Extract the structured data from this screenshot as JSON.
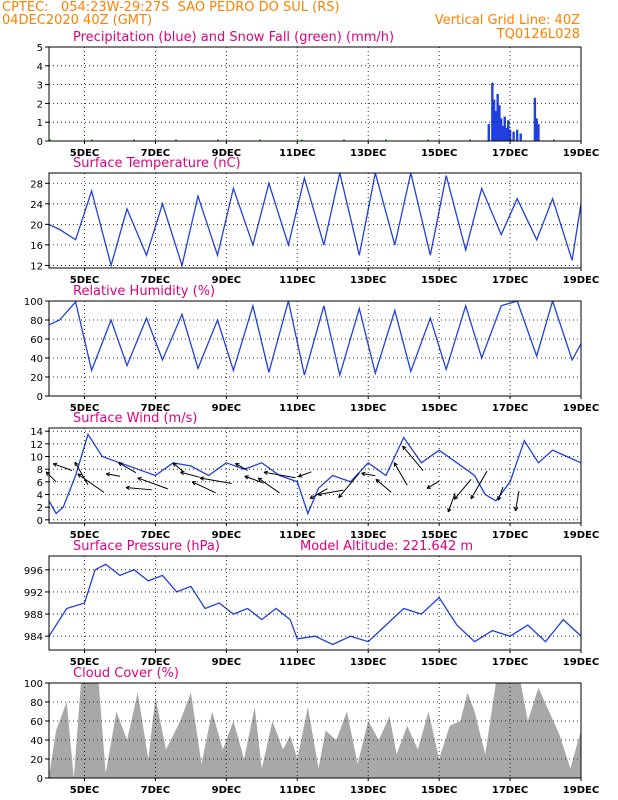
{
  "header": {
    "line1_left": "CPTEC:   054:23W-29:27S  SAO PEDRO DO SUL (RS)",
    "line2_left": "04DEC2020 40Z (GMT)",
    "line2_right": "Vertical Grid Line: 40Z",
    "line3_right": "TQ0126L028"
  },
  "x_tick_labels": [
    "5DEC",
    "7DEC",
    "9DEC",
    "11DEC",
    "13DEC",
    "15DEC",
    "17DEC",
    "19DEC"
  ],
  "colors": {
    "header": "#ff8000",
    "panel_title": "#e0007f",
    "series_blue": "#2040e0",
    "snow_green": "#00b000",
    "cloud_gray": "#a8a8a8"
  },
  "chart_data": [
    {
      "type": "bar",
      "title": "Precipitation (blue) and Snow Fall (green) (mm/h)",
      "ylim": [
        0,
        5
      ],
      "yticks": [
        "0",
        "1",
        "2",
        "3",
        "4",
        "5"
      ],
      "grid": true,
      "series": [
        {
          "name": "Precipitation",
          "color": "blue",
          "points": [
            [
              16.4,
              0.9
            ],
            [
              16.5,
              3.1
            ],
            [
              16.55,
              2.2
            ],
            [
              16.6,
              1.6
            ],
            [
              16.65,
              2.5
            ],
            [
              16.7,
              1.9
            ],
            [
              16.75,
              1.2
            ],
            [
              16.8,
              0.8
            ],
            [
              16.85,
              1.3
            ],
            [
              16.9,
              0.7
            ],
            [
              16.95,
              1.1
            ],
            [
              17.0,
              0.6
            ],
            [
              17.1,
              0.5
            ],
            [
              17.2,
              0.6
            ],
            [
              17.3,
              0.4
            ],
            [
              17.7,
              2.3
            ],
            [
              17.75,
              1.2
            ],
            [
              17.8,
              0.9
            ]
          ]
        },
        {
          "name": "Snow Fall",
          "color": "green",
          "values": "0"
        }
      ]
    },
    {
      "type": "line",
      "title": "Surface Temperature (nC)",
      "ylim": [
        11.5,
        30
      ],
      "yticks": [
        "12",
        "16",
        "20",
        "24",
        "28"
      ],
      "grid": true,
      "x": [
        4.0,
        4.3,
        4.75,
        5.2,
        5.75,
        6.2,
        6.75,
        7.2,
        7.75,
        8.2,
        8.75,
        9.2,
        9.75,
        10.2,
        10.75,
        11.2,
        11.75,
        12.2,
        12.75,
        13.2,
        13.75,
        14.2,
        14.75,
        15.2,
        15.75,
        16.2,
        16.75,
        17.2,
        17.75,
        18.2,
        18.75,
        19.0
      ],
      "y": [
        20,
        19,
        17,
        26.5,
        12,
        23,
        14,
        24,
        12,
        25.5,
        14,
        27,
        16,
        28,
        16,
        29,
        16,
        30,
        14,
        30,
        16,
        30,
        14,
        29.5,
        15,
        27,
        18,
        25,
        17,
        25,
        13,
        24
      ]
    },
    {
      "type": "line",
      "title": "Relative Humidity (%)",
      "ylim": [
        0,
        100
      ],
      "yticks": [
        "0",
        "20",
        "40",
        "60",
        "80",
        "100"
      ],
      "grid": true,
      "x": [
        4.0,
        4.3,
        4.75,
        5.2,
        5.75,
        6.2,
        6.75,
        7.2,
        7.75,
        8.2,
        8.75,
        9.2,
        9.75,
        10.2,
        10.75,
        11.2,
        11.75,
        12.2,
        12.75,
        13.2,
        13.75,
        14.2,
        14.75,
        15.2,
        15.75,
        16.2,
        16.75,
        17.2,
        17.75,
        18.2,
        18.75,
        19.0
      ],
      "y": [
        75,
        80,
        99,
        27,
        80,
        32,
        82,
        38,
        86,
        29,
        80,
        27,
        95,
        25,
        100,
        22,
        95,
        22,
        92,
        24,
        90,
        26,
        82,
        28,
        95,
        40,
        95,
        100,
        42,
        100,
        38,
        55
      ]
    },
    {
      "type": "line",
      "title": "Surface Wind (m/s)",
      "ylim": [
        -0.5,
        14.5
      ],
      "yticks": [
        "0",
        "2",
        "4",
        "6",
        "8",
        "10",
        "12",
        "14"
      ],
      "grid": true,
      "x": [
        4.0,
        4.2,
        4.4,
        4.75,
        5.1,
        5.5,
        6.0,
        6.5,
        7.0,
        7.5,
        8.0,
        8.5,
        9.0,
        9.5,
        10.0,
        10.5,
        11.0,
        11.3,
        11.6,
        12.0,
        12.5,
        13.0,
        13.5,
        14.0,
        14.5,
        15.0,
        15.5,
        16.0,
        16.3,
        16.6,
        17.0,
        17.4,
        17.8,
        18.2,
        18.6,
        19.0
      ],
      "y": [
        3,
        1,
        2,
        7,
        13.5,
        10,
        9,
        8,
        7,
        9,
        8.5,
        7,
        9,
        8,
        9,
        7,
        6,
        1,
        5,
        7,
        6,
        9,
        7,
        13,
        9,
        11,
        9,
        7,
        4,
        3,
        6,
        12.5,
        9,
        11,
        10,
        9
      ],
      "arrows": "wind direction vectors along the series"
    },
    {
      "type": "line",
      "title": "Surface Pressure (hPa)",
      "annotation": "Model Altitude: 221.642 m",
      "ylim": [
        981.5,
        998.5
      ],
      "yticks": [
        "984",
        "988",
        "992",
        "996"
      ],
      "grid": true,
      "x": [
        4.0,
        4.5,
        5.0,
        5.3,
        5.6,
        6.0,
        6.4,
        6.8,
        7.2,
        7.6,
        8.0,
        8.4,
        8.8,
        9.2,
        9.6,
        10.0,
        10.4,
        10.8,
        11.0,
        11.5,
        12.0,
        12.5,
        13.0,
        13.5,
        14.0,
        14.5,
        15.0,
        15.5,
        16.0,
        16.5,
        17.0,
        17.5,
        18.0,
        18.5,
        19.0
      ],
      "y": [
        984,
        989,
        990,
        996,
        997,
        995,
        996,
        994,
        995,
        992,
        993,
        989,
        990,
        988,
        989,
        987,
        989,
        987,
        983.5,
        984,
        982.5,
        984,
        983,
        986,
        989,
        988,
        991,
        986,
        983,
        985,
        984,
        986,
        983,
        987,
        984
      ]
    },
    {
      "type": "area",
      "title": "Cloud Cover (%)",
      "ylim": [
        0,
        100
      ],
      "yticks": [
        "0",
        "20",
        "40",
        "60",
        "80",
        "100"
      ],
      "grid": true,
      "x": [
        4.0,
        4.2,
        4.5,
        4.7,
        4.9,
        5.4,
        5.6,
        5.9,
        6.2,
        6.5,
        6.8,
        7.0,
        7.3,
        7.7,
        8.0,
        8.3,
        8.6,
        8.9,
        9.2,
        9.5,
        9.8,
        10.0,
        10.3,
        10.6,
        10.8,
        11.0,
        11.3,
        11.6,
        11.8,
        12.1,
        12.4,
        12.7,
        13.0,
        13.3,
        13.6,
        13.8,
        14.1,
        14.4,
        14.7,
        15.0,
        15.3,
        15.6,
        15.8,
        16.0,
        16.3,
        16.6,
        17.0,
        17.3,
        17.5,
        17.8,
        18.1,
        18.4,
        18.7,
        19.0
      ],
      "y": [
        2,
        50,
        80,
        0,
        100,
        100,
        5,
        70,
        40,
        90,
        20,
        85,
        30,
        60,
        90,
        15,
        70,
        30,
        60,
        20,
        75,
        10,
        60,
        30,
        45,
        20,
        75,
        10,
        50,
        40,
        70,
        15,
        60,
        40,
        65,
        25,
        55,
        30,
        70,
        20,
        55,
        60,
        90,
        70,
        25,
        100,
        100,
        100,
        60,
        95,
        70,
        45,
        10,
        50
      ]
    }
  ]
}
